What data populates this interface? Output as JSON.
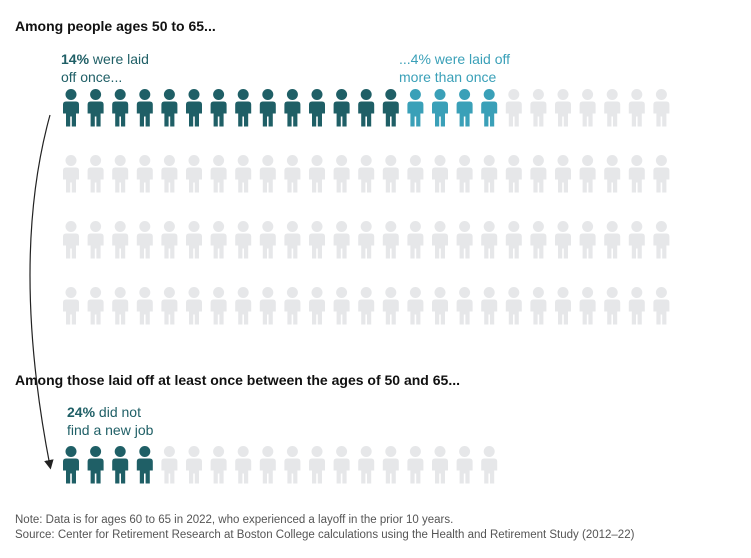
{
  "colors": {
    "dark": "#1f5f66",
    "light": "#3aa0b8",
    "empty": "#e6e7e9",
    "arrow": "#222222"
  },
  "chart_data": [
    {
      "type": "icon-array",
      "title": "Among people ages 50 to 65...",
      "total_icons": 100,
      "series": [
        {
          "name": "laid off once",
          "value": 14,
          "color": "#1f5f66"
        },
        {
          "name": "laid off more than once",
          "value": 4,
          "color": "#3aa0b8"
        },
        {
          "name": "not laid off",
          "value": 82,
          "color": "#e6e7e9"
        }
      ],
      "annotations": [
        {
          "value": "14%",
          "text1": " were laid",
          "text2": "off once..."
        },
        {
          "value": "...4%",
          "text1": " were laid off",
          "text2": "more than once"
        }
      ]
    },
    {
      "type": "icon-array",
      "title": "Among those laid off at least once between the ages of 50 and 65...",
      "total_icons": 18,
      "series": [
        {
          "name": "did not find a new job",
          "value": 4,
          "color": "#1f5f66"
        },
        {
          "name": "found a new job",
          "value": 14,
          "color": "#e6e7e9"
        }
      ],
      "annotations": [
        {
          "value": "24%",
          "text1": " did not",
          "text2": "find a new job"
        }
      ]
    }
  ],
  "footer": {
    "note": "Note: Data is for ages 60 to 65 in 2022, who experienced a layoff in the prior 10 years.",
    "source": "Source: Center for Retirement Research at Boston College calculations using the Health and Retirement Study (2012–22)"
  }
}
